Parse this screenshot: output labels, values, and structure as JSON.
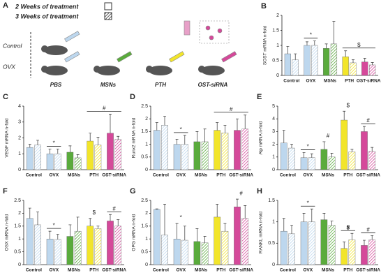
{
  "panel_a": {
    "label": "A",
    "rows": [
      "Control",
      "OVX"
    ],
    "treatments": [
      "PBS",
      "MSNs",
      "PTH",
      "OST-siRNA"
    ]
  },
  "chart_data": [
    {
      "type": "bar",
      "panel": "B",
      "ylabel": "SOST mRNA n-fold",
      "categories": [
        "Control",
        "OVX",
        "MSNs",
        "PTH",
        "OST-siRNA"
      ],
      "colors": [
        "#bdd7ee",
        "#bdd7ee",
        "#5aab3c",
        "#f2e52a",
        "#d5499a"
      ],
      "series": [
        {
          "name": "2 Weeks of treatment",
          "values": [
            0.72,
            1.0,
            0.9,
            0.62,
            0.45
          ],
          "errors": [
            0.25,
            0.12,
            0.15,
            0.2,
            0.12
          ]
        },
        {
          "name": "3 Weeks of treatment",
          "values": [
            0.52,
            1.0,
            1.05,
            0.42,
            0.35
          ],
          "errors": [
            0.2,
            0.15,
            0.75,
            0.1,
            0.08
          ]
        }
      ],
      "ylim": [
        0,
        2
      ],
      "yticks": [
        0,
        0.5,
        1,
        1.5,
        2
      ],
      "annotations": [
        {
          "text": "*",
          "categories": [
            "OVX"
          ],
          "line": true
        },
        {
          "text": "$",
          "categories": [
            "PTH",
            "OST-siRNA"
          ],
          "line": true
        }
      ]
    },
    {
      "type": "bar",
      "panel": "C",
      "ylabel": "VEGF mRNA n-fold",
      "categories": [
        "Control",
        "OVX",
        "MSNs",
        "PTH",
        "OST-siRNA"
      ],
      "colors": [
        "#bdd7ee",
        "#bdd7ee",
        "#5aab3c",
        "#f2e52a",
        "#d5499a"
      ],
      "series": [
        {
          "name": "2 Weeks of treatment",
          "values": [
            1.4,
            1.0,
            1.1,
            1.8,
            2.3
          ],
          "errors": [
            0.2,
            0.3,
            0.4,
            0.5,
            1.2
          ]
        },
        {
          "name": "3 Weeks of treatment",
          "values": [
            1.55,
            1.0,
            0.75,
            1.55,
            1.9
          ],
          "errors": [
            0.3,
            0.3,
            0.2,
            0.5,
            0.2
          ]
        }
      ],
      "ylim": [
        0,
        4
      ],
      "yticks": [
        0,
        1,
        2,
        3,
        4
      ],
      "annotations": [
        {
          "text": "*",
          "categories": [
            "OVX"
          ],
          "line": true
        },
        {
          "text": "#",
          "categories": [
            "PTH",
            "OST-siRNA"
          ],
          "line": true
        }
      ]
    },
    {
      "type": "bar",
      "panel": "D",
      "ylabel": "Runx2 mRNA n-fold",
      "categories": [
        "Control",
        "OVX",
        "MSNs",
        "PTH",
        "OST-siRNA"
      ],
      "colors": [
        "#bdd7ee",
        "#bdd7ee",
        "#5aab3c",
        "#f2e52a",
        "#d5499a"
      ],
      "series": [
        {
          "name": "2 Weeks of treatment",
          "values": [
            1.55,
            1.0,
            1.1,
            1.55,
            1.55
          ],
          "errors": [
            0.3,
            0.2,
            0.4,
            0.3,
            0.45
          ]
        },
        {
          "name": "3 Weeks of treatment",
          "values": [
            1.75,
            1.0,
            1.1,
            1.45,
            1.6
          ],
          "errors": [
            0.35,
            0.35,
            0.5,
            0.3,
            0.55
          ]
        }
      ],
      "ylim": [
        0,
        2.5
      ],
      "yticks": [
        0,
        0.5,
        1,
        1.5,
        2,
        2.5
      ],
      "annotations": [
        {
          "text": "*",
          "categories": [
            "OVX"
          ],
          "line": true
        },
        {
          "text": "#",
          "categories": [
            "PTH",
            "OST-siRNA"
          ],
          "line": true
        }
      ]
    },
    {
      "type": "bar",
      "panel": "E",
      "ylabel": "Alp mRNA n-fold",
      "categories": [
        "Control",
        "OVX",
        "MSNs",
        "PTH",
        "OST-siRNA"
      ],
      "colors": [
        "#bdd7ee",
        "#bdd7ee",
        "#5aab3c",
        "#f2e52a",
        "#d5499a"
      ],
      "series": [
        {
          "name": "2 Weeks of treatment",
          "values": [
            2.1,
            0.95,
            1.6,
            3.9,
            3.0
          ],
          "errors": [
            1.0,
            0.4,
            0.6,
            0.7,
            0.4
          ]
        },
        {
          "name": "3 Weeks of treatment",
          "values": [
            1.7,
            0.95,
            1.0,
            1.4,
            1.45
          ],
          "errors": [
            0.3,
            0.3,
            0.3,
            0.2,
            0.3
          ]
        }
      ],
      "ylim": [
        0,
        5
      ],
      "yticks": [
        0,
        1,
        2,
        3,
        4,
        5
      ],
      "annotations": [
        {
          "text": "*",
          "categories": [
            "OVX"
          ],
          "line": true
        },
        {
          "text": "#",
          "categories": [
            "MSNs"
          ],
          "line": false
        },
        {
          "text": "$",
          "categories": [
            "PTH"
          ],
          "line": false
        },
        {
          "text": "#",
          "categories": [
            "OST-siRNA"
          ],
          "line": true
        }
      ]
    },
    {
      "type": "bar",
      "panel": "F",
      "ylabel": "OSX mRNA n-fold",
      "categories": [
        "Control",
        "OVX",
        "MSNs",
        "PTH",
        "OST-siRNA"
      ],
      "colors": [
        "#bdd7ee",
        "#bdd7ee",
        "#5aab3c",
        "#f2e52a",
        "#d5499a"
      ],
      "series": [
        {
          "name": "2 Weeks of treatment",
          "values": [
            1.8,
            1.0,
            1.1,
            1.5,
            1.7
          ],
          "errors": [
            0.4,
            0.3,
            0.45,
            0.3,
            0.25
          ]
        },
        {
          "name": "3 Weeks of treatment",
          "values": [
            1.55,
            0.98,
            1.3,
            1.4,
            1.5
          ],
          "errors": [
            0.5,
            0.2,
            0.55,
            0.1,
            0.25
          ]
        }
      ],
      "ylim": [
        0,
        2.5
      ],
      "yticks": [
        0,
        0.5,
        1,
        1.5,
        2,
        2.5
      ],
      "annotations": [
        {
          "text": "*",
          "categories": [
            "OVX"
          ],
          "line": true
        },
        {
          "text": "$",
          "categories": [
            "PTH"
          ],
          "line": false
        },
        {
          "text": "#",
          "categories": [
            "OST-siRNA"
          ],
          "line": true
        }
      ]
    },
    {
      "type": "bar",
      "panel": "G",
      "ylabel": "OPG mRNA n-fold",
      "categories": [
        "Control",
        "OVX",
        "MSNs",
        "PTH",
        "OST-siRNA"
      ],
      "colors": [
        "#bdd7ee",
        "#bdd7ee",
        "#5aab3c",
        "#f2e52a",
        "#d5499a"
      ],
      "series": [
        {
          "name": "2 Weeks of treatment",
          "values": [
            2.15,
            1.0,
            0.9,
            1.85,
            2.25
          ],
          "errors": [
            0.02,
            0.6,
            0.5,
            0.5,
            0.3
          ]
        },
        {
          "name": "3 Weeks of treatment",
          "values": [
            1.15,
            0.95,
            0.85,
            1.3,
            1.8
          ],
          "errors": [
            1.2,
            0.55,
            0.25,
            0.3,
            0.5
          ]
        }
      ],
      "ylim": [
        0,
        2.5
      ],
      "yticks": [
        0,
        0.5,
        1,
        1.5,
        2,
        2.5
      ],
      "annotations": [
        {
          "text": "*",
          "categories": [
            "OVX"
          ],
          "line": false
        },
        {
          "text": "#",
          "categories": [
            "OST-siRNA"
          ],
          "line": false
        }
      ]
    },
    {
      "type": "bar",
      "panel": "H",
      "ylabel": "RANKL mRNA n-fold",
      "categories": [
        "Control",
        "OVX",
        "MSNs",
        "PTH",
        "OST-siRNA"
      ],
      "colors": [
        "#bdd7ee",
        "#bdd7ee",
        "#5aab3c",
        "#f2e52a",
        "#d5499a"
      ],
      "series": [
        {
          "name": "2 Weeks of treatment",
          "values": [
            0.78,
            1.0,
            1.05,
            0.38,
            0.45
          ],
          "errors": [
            0.3,
            0.2,
            0.15,
            0.15,
            0.12
          ]
        },
        {
          "name": "3 Weeks of treatment",
          "values": [
            0.72,
            1.0,
            0.92,
            0.58,
            0.58
          ],
          "errors": [
            0.2,
            0.3,
            0.1,
            0.15,
            0.1
          ]
        }
      ],
      "ylim": [
        0,
        1.5
      ],
      "yticks": [
        0,
        0.5,
        1,
        1.5
      ],
      "annotations": [
        {
          "text": "*",
          "categories": [
            "OVX"
          ],
          "line": true
        },
        {
          "text": "$",
          "categories": [
            "PTH"
          ],
          "line": false
        },
        {
          "text": "#",
          "categories": [
            "PTH"
          ],
          "line": true
        },
        {
          "text": "#",
          "categories": [
            "OST-siRNA"
          ],
          "line": true
        }
      ]
    }
  ]
}
